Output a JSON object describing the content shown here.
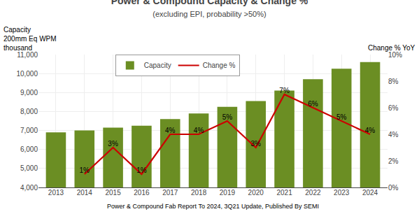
{
  "chart_data": {
    "type": "bar",
    "title": "Power & Compound Capacity & Change %",
    "subtitle": "(excluding EPI, probability >50%)",
    "ylabel": [
      "Capacity",
      "200mm Eq WPM",
      "thousand"
    ],
    "y2label": "Change % YoY",
    "annotations": [
      "Power & Compound Fab Report To 2024, 3Q21 Update, Published By SEMI"
    ],
    "categories": [
      "2013",
      "2014",
      "2015",
      "2016",
      "2017",
      "2018",
      "2019",
      "2020",
      "2021",
      "2022",
      "2023",
      "2024"
    ],
    "series": [
      {
        "name": "Capacity",
        "type": "bar",
        "color": "#6B8E23",
        "values": [
          6900,
          7000,
          7150,
          7250,
          7600,
          7900,
          8250,
          8550,
          9100,
          9700,
          10250,
          10600
        ]
      },
      {
        "name": "Change %",
        "type": "line",
        "axis": "y2",
        "color": "#CC0000",
        "data_labels": true,
        "values": [
          null,
          1.0,
          3.0,
          1.0,
          4.0,
          4.0,
          5.0,
          3.0,
          7.0,
          6.0,
          5.0,
          4.0
        ],
        "value_labels": [
          null,
          "1%",
          "3%",
          "1%",
          "4%",
          "4%",
          "5%",
          "3%",
          "7%",
          "6%",
          "5%",
          "4%"
        ]
      }
    ],
    "ylim": [
      4000,
      11000
    ],
    "yticks": [
      {
        "value": 4000,
        "label": "4,000"
      },
      {
        "value": 5000,
        "label": "5,000"
      },
      {
        "value": 6000,
        "label": "6,000"
      },
      {
        "value": 7000,
        "label": "7,000"
      },
      {
        "value": 8000,
        "label": "8,000"
      },
      {
        "value": 9000,
        "label": "9,000"
      },
      {
        "value": 10000,
        "label": "10,000"
      },
      {
        "value": 11000,
        "label": "11,000"
      }
    ],
    "y2lim": [
      0,
      10
    ],
    "y2ticks": [
      {
        "value": 0,
        "label": "0%"
      },
      {
        "value": 2,
        "label": "2%"
      },
      {
        "value": 4,
        "label": "4%"
      },
      {
        "value": 6,
        "label": "6%"
      },
      {
        "value": 8,
        "label": "8%"
      },
      {
        "value": 10,
        "label": "10%"
      }
    ],
    "grid": true,
    "legend": "top"
  }
}
